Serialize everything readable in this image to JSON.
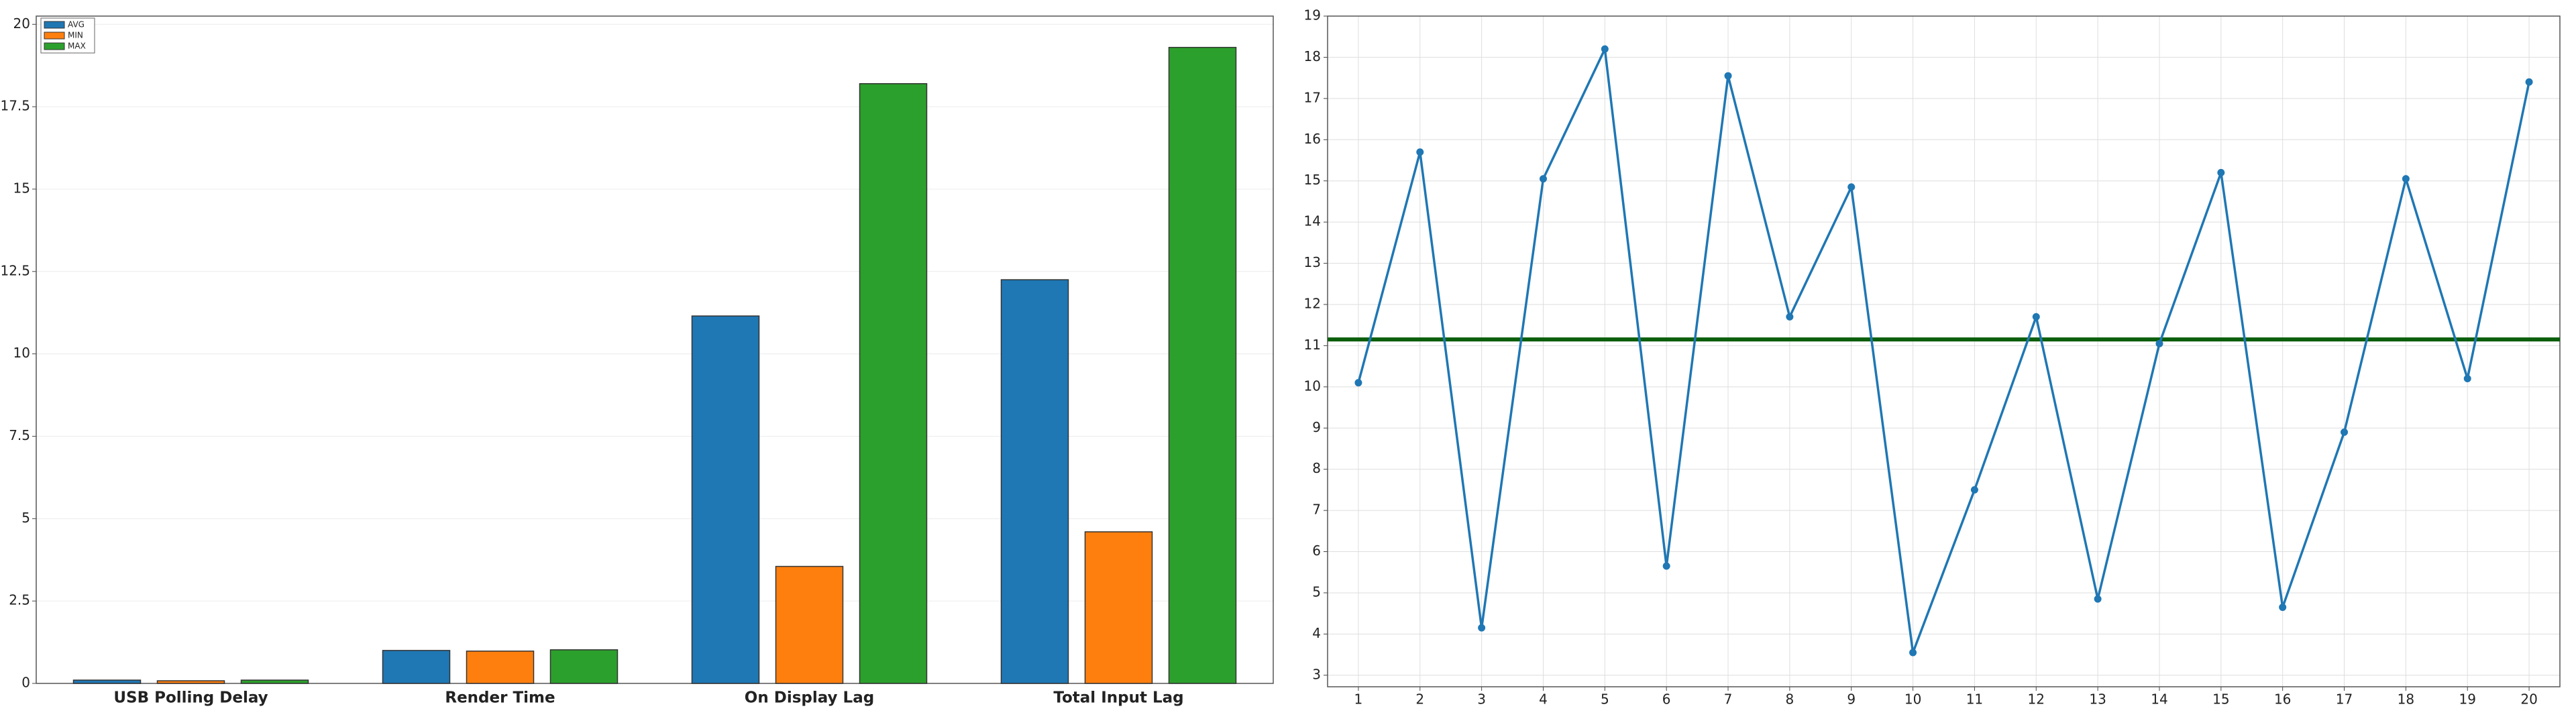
{
  "chart_data": [
    {
      "type": "bar",
      "categories": [
        "USB Polling Delay",
        "Render Time",
        "On Display Lag",
        "Total Input Lag"
      ],
      "series": [
        {
          "name": "AVG",
          "color": "#1f77b4",
          "values": [
            0.1,
            1.0,
            11.15,
            12.25
          ]
        },
        {
          "name": "MIN",
          "color": "#ff7f0e",
          "values": [
            0.08,
            0.98,
            3.55,
            4.6
          ]
        },
        {
          "name": "MAX",
          "color": "#2ca02c",
          "values": [
            0.1,
            1.02,
            18.2,
            19.3
          ]
        }
      ],
      "ylim": [
        0,
        20.25
      ],
      "yticks": [
        0,
        2.5,
        5,
        7.5,
        10,
        12.5,
        15,
        17.5,
        20
      ],
      "grid": true,
      "legend": "upper-left"
    },
    {
      "type": "line",
      "x": [
        1,
        2,
        3,
        4,
        5,
        6,
        7,
        8,
        9,
        10,
        11,
        12,
        13,
        14,
        15,
        16,
        17,
        18,
        19,
        20
      ],
      "series": [
        {
          "color": "#1f77b4",
          "values": [
            10.1,
            15.7,
            4.15,
            15.05,
            18.2,
            5.65,
            17.55,
            11.7,
            14.85,
            3.55,
            7.5,
            11.7,
            4.85,
            11.05,
            15.2,
            4.65,
            8.9,
            15.05,
            10.2,
            17.4
          ]
        }
      ],
      "hline": {
        "value": 11.15,
        "color": "#0b5e0b"
      },
      "xlim": [
        0.5,
        20.5
      ],
      "xticks": [
        1,
        2,
        3,
        4,
        5,
        6,
        7,
        8,
        9,
        10,
        11,
        12,
        13,
        14,
        15,
        16,
        17,
        18,
        19,
        20
      ],
      "ylim": [
        2.72,
        19
      ],
      "yticks": [
        3,
        4,
        5,
        6,
        7,
        8,
        9,
        10,
        11,
        12,
        13,
        14,
        15,
        16,
        17,
        18,
        19
      ],
      "grid": true
    }
  ]
}
